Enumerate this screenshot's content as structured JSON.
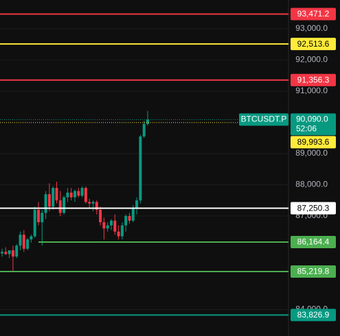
{
  "chart_data": {
    "type": "candlestick",
    "symbol": "BTCUSDT.P",
    "countdown": "52:06",
    "up_color": "#089981",
    "down_color": "#f23645",
    "open": [
      85800,
      85850,
      85780,
      85900,
      85700,
      86050,
      86400,
      85950,
      86250,
      86350,
      87200,
      86800,
      87100,
      87700,
      87300,
      87900,
      87500,
      87100,
      87600,
      87750,
      87600,
      87800,
      87650,
      87900,
      87450,
      87400,
      87450,
      87200,
      86800,
      86600,
      86700,
      86850,
      86500,
      86350,
      86700,
      87000,
      86850,
      87250,
      87500,
      89550,
      89950
    ],
    "high": [
      85950,
      86000,
      85900,
      86050,
      86100,
      86500,
      86550,
      86300,
      86400,
      87300,
      87450,
      87200,
      87800,
      88050,
      87950,
      88100,
      87800,
      87650,
      87900,
      87900,
      87850,
      87900,
      87950,
      87950,
      87550,
      87500,
      87500,
      87300,
      86950,
      86800,
      86900,
      87050,
      86700,
      86800,
      87050,
      87100,
      87350,
      87600,
      89600,
      90050,
      90370
    ],
    "low": [
      85700,
      85750,
      85650,
      85200,
      85650,
      85900,
      85850,
      85900,
      86150,
      86300,
      86700,
      86050,
      86900,
      87150,
      87200,
      87400,
      87000,
      87050,
      87450,
      87500,
      87450,
      87600,
      87600,
      87400,
      87250,
      87150,
      87050,
      86700,
      86250,
      86500,
      86550,
      86400,
      86250,
      86250,
      86500,
      86750,
      86800,
      87050,
      87400,
      89500,
      89900
    ],
    "close": [
      85850,
      85780,
      85900,
      85700,
      86050,
      86400,
      85950,
      86250,
      86350,
      87200,
      86800,
      87100,
      87700,
      87300,
      87900,
      87500,
      87100,
      87600,
      87750,
      87600,
      87800,
      87650,
      87900,
      87450,
      87400,
      87450,
      87200,
      86800,
      86600,
      86700,
      86850,
      86500,
      86350,
      86700,
      87000,
      86850,
      87250,
      87500,
      89550,
      89950,
      90090
    ],
    "last_price": {
      "value": 90090,
      "label": "90,090.0"
    },
    "ylim": [
      83154,
      93923
    ],
    "yticks": [
      {
        "value": 93000,
        "label": "93,000.0"
      },
      {
        "value": 92000,
        "label": "92,000.0"
      },
      {
        "value": 91000,
        "label": "91,000.0"
      },
      {
        "value": 89000,
        "label": "89,000.0"
      },
      {
        "value": 88000,
        "label": "88,000.0"
      },
      {
        "value": 87000,
        "label": "87,000.0"
      },
      {
        "value": 84000,
        "label": "84,000.0"
      }
    ],
    "price_lines": [
      {
        "value": 93471.2,
        "label": "93,471.2",
        "color": "#f23645"
      },
      {
        "value": 92513.6,
        "label": "92,513.6",
        "color": "#ffeb3b"
      },
      {
        "value": 91356.3,
        "label": "91,356.3",
        "color": "#f23645"
      },
      {
        "value": 89993.6,
        "label": "89,993.6",
        "color": "#ffeb3b",
        "dotted": true
      },
      {
        "value": 87250.3,
        "label": "87,250.3",
        "color": "#ffffff"
      },
      {
        "value": 86164.4,
        "label": "86,164.4",
        "color": "#4caf50",
        "from_candle": 10
      },
      {
        "value": 85219.8,
        "label": "85,219.8",
        "color": "#4caf50"
      },
      {
        "value": 83826.9,
        "label": "83,826.9",
        "color": "#089981"
      }
    ]
  }
}
